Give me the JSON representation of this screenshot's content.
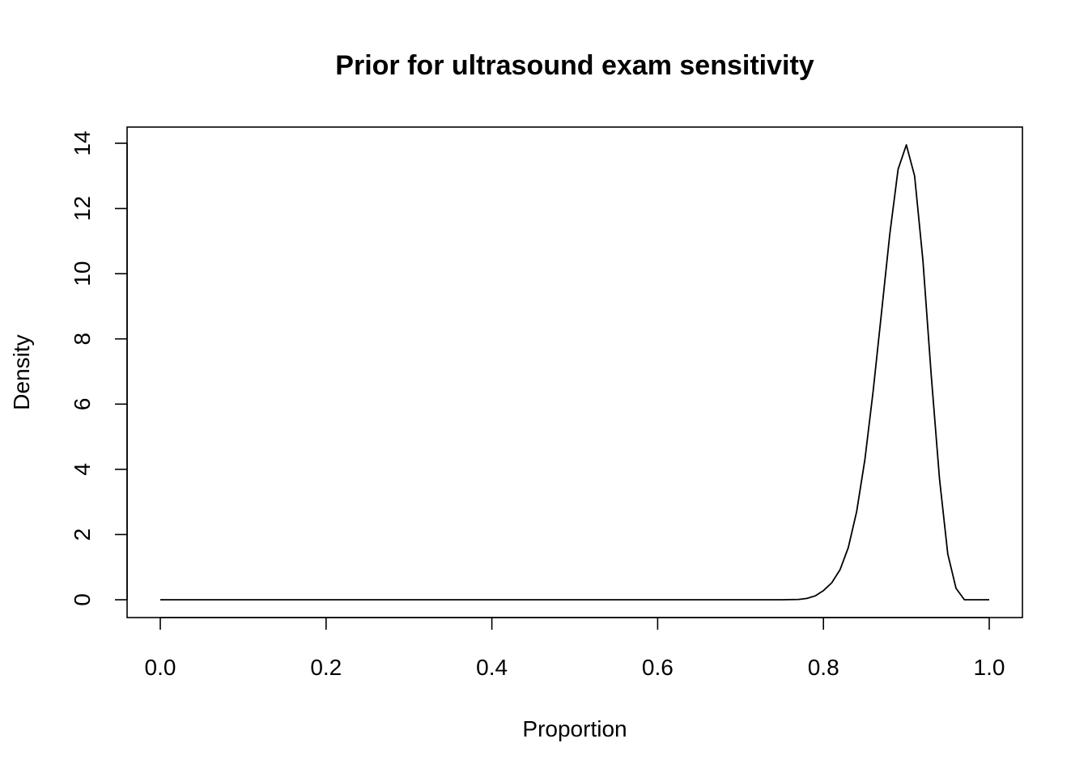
{
  "chart_data": {
    "type": "line",
    "title": "Prior for ultrasound exam sensitivity",
    "xlabel": "Proportion",
    "ylabel": "Density",
    "xlim": [
      0,
      1
    ],
    "ylim": [
      0,
      14
    ],
    "x_ticks": [
      0.0,
      0.2,
      0.4,
      0.6,
      0.8,
      1.0
    ],
    "x_tick_labels": [
      "0.0",
      "0.2",
      "0.4",
      "0.6",
      "0.8",
      "1.0"
    ],
    "y_ticks": [
      0,
      2,
      4,
      6,
      8,
      10,
      12,
      14
    ],
    "y_tick_labels": [
      "0",
      "2",
      "4",
      "6",
      "8",
      "10",
      "12",
      "14"
    ],
    "grid": false,
    "legend": "none",
    "series": [
      {
        "color": "#000000",
        "x": [
          0.0,
          0.7,
          0.75,
          0.77,
          0.78,
          0.79,
          0.8,
          0.81,
          0.82,
          0.83,
          0.84,
          0.85,
          0.86,
          0.87,
          0.88,
          0.89,
          0.9,
          0.91,
          0.92,
          0.93,
          0.94,
          0.95,
          0.96,
          0.97,
          0.98,
          0.99,
          1.0
        ],
        "y": [
          0.0,
          0.0,
          0.0,
          0.01,
          0.04,
          0.12,
          0.28,
          0.52,
          0.92,
          1.6,
          2.7,
          4.3,
          6.4,
          8.8,
          11.2,
          13.2,
          13.95,
          13.0,
          10.4,
          6.9,
          3.7,
          1.4,
          0.35,
          0.0,
          0.0,
          0.0,
          0.0
        ]
      }
    ]
  }
}
